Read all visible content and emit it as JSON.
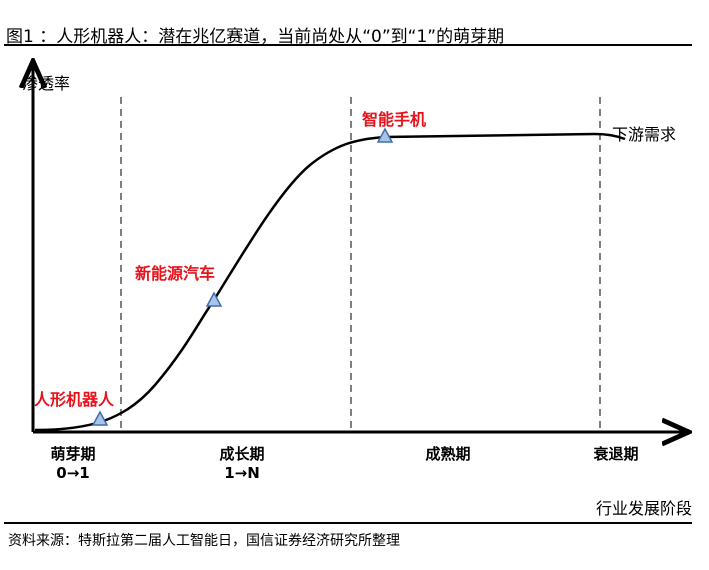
{
  "title": "图1 ：人形机器人：潜在兆亿赛道，当前尚处从“0”到“1”的萌芽期",
  "y_axis_label": "渗透率",
  "x_axis_label": "行业发展阶段",
  "markers": [
    {
      "label": "人形机器人"
    },
    {
      "label": "新能源汽车"
    },
    {
      "label": "智能手机"
    }
  ],
  "curve_end_label": "下游需求",
  "phases": [
    {
      "name": "萌芽期",
      "sub": "0→1"
    },
    {
      "name": "成长期",
      "sub": "1→N"
    },
    {
      "name": "成熟期",
      "sub": ""
    },
    {
      "name": "衰退期",
      "sub": ""
    }
  ],
  "colors": {
    "highlight": "#e8121b",
    "marker_fill": "#a9c4e6",
    "marker_stroke": "#3f6ea8",
    "divider": "#808080"
  },
  "source": "资料来源：特斯拉第二届人工智能日，国信证券经济研究所整理"
}
